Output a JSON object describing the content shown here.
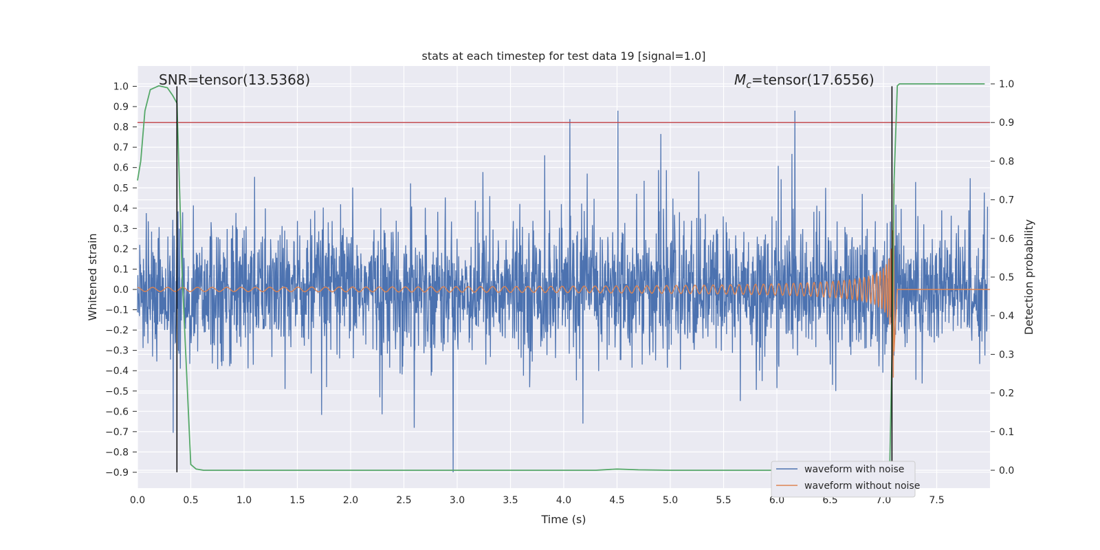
{
  "chart_data": {
    "type": "line",
    "title": "stats at each timestep for test data 19 [signal=1.0]",
    "xlabel": "Time (s)",
    "ylabel": "Whitened strain",
    "y2label": "Detection probability",
    "xlim": [
      0.0,
      8.0
    ],
    "ylim": [
      -1.0,
      1.05
    ],
    "y2lim": [
      -0.045,
      1.04
    ],
    "x_ticks": [
      "0.0",
      "0.5",
      "1.0",
      "1.5",
      "2.0",
      "2.5",
      "3.0",
      "3.5",
      "4.0",
      "4.5",
      "5.0",
      "5.5",
      "6.0",
      "6.5",
      "7.0",
      "7.5"
    ],
    "y_ticks": [
      "1.0",
      "0.9",
      "0.8",
      "0.7",
      "0.6",
      "0.5",
      "0.4",
      "0.3",
      "0.2",
      "0.1",
      "0.0",
      "−0.1",
      "−0.2",
      "−0.3",
      "−0.4",
      "−0.5",
      "−0.6",
      "−0.7",
      "−0.8",
      "−0.9"
    ],
    "y2_ticks": [
      "1.0",
      "0.9",
      "0.8",
      "0.7",
      "0.6",
      "0.5",
      "0.4",
      "0.3",
      "0.2",
      "0.1",
      "0.0"
    ],
    "grid": true,
    "legend_placement": "lower-right",
    "annotations": {
      "snr": "SNR=tensor(13.5368)",
      "mc_symbol": "M",
      "mc_subscript": "c",
      "mc_value": "=tensor(17.6556)"
    },
    "threshold": {
      "y2": 0.9,
      "color": "#c44e52"
    },
    "vlines_x": [
      0.37,
      7.08
    ],
    "series": [
      {
        "name": "waveform with noise",
        "color": "#4c72b0",
        "axis": "left",
        "description_values": {
          "typical_band": [
            -0.35,
            0.4
          ],
          "peak_max": 0.88,
          "peak_min": -0.9
        }
      },
      {
        "name": "waveform without noise",
        "color": "#dd8452",
        "axis": "left",
        "chirp": {
          "start_amplitude": 0.01,
          "peak_amplitude": 0.58,
          "merger_time": 7.1,
          "end_time": 7.13
        }
      },
      {
        "name": "detection probability",
        "color": "#55a868",
        "axis": "right",
        "x": [
          0.0,
          0.03,
          0.07,
          0.12,
          0.2,
          0.28,
          0.33,
          0.37,
          0.42,
          0.5,
          0.55,
          0.62,
          1.0,
          2.0,
          3.0,
          4.0,
          4.3,
          4.5,
          4.7,
          5.0,
          6.0,
          6.5,
          6.9,
          7.02,
          7.06,
          7.08,
          7.1,
          7.13,
          7.15,
          7.5,
          7.95
        ],
        "values": [
          0.75,
          0.8,
          0.93,
          0.985,
          0.995,
          0.99,
          0.97,
          0.95,
          0.5,
          0.015,
          0.003,
          0.0,
          0.0,
          0.0,
          0.0,
          0.0,
          0.0,
          0.003,
          0.001,
          0.0,
          0.0,
          0.0,
          0.0,
          0.005,
          0.02,
          0.3,
          0.75,
          0.995,
          1.0,
          1.0,
          1.0
        ]
      }
    ]
  }
}
